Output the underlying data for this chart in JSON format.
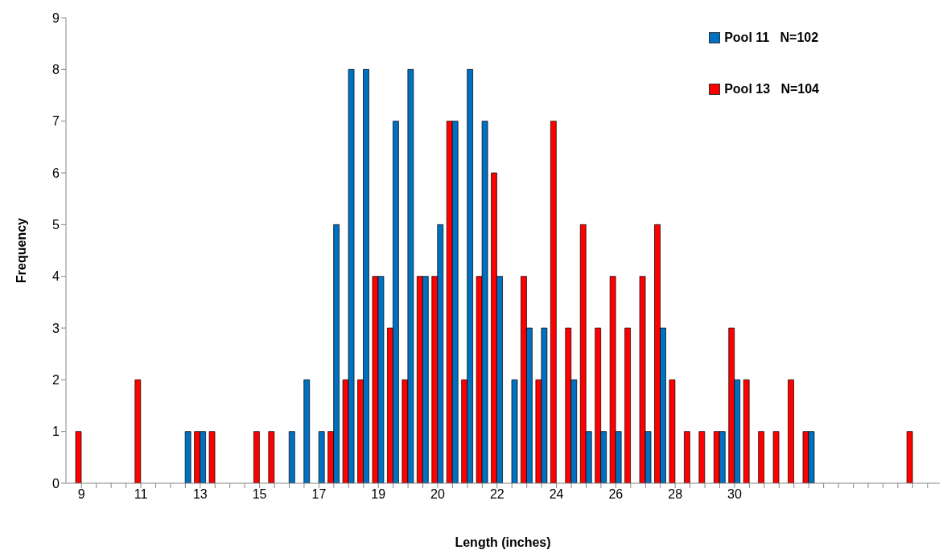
{
  "chart_data": {
    "type": "bar",
    "xlabel": "Length (inches)",
    "ylabel": "Frequency",
    "categories": [
      "9",
      null,
      null,
      null,
      "11",
      null,
      null,
      null,
      "13",
      null,
      null,
      null,
      "15",
      null,
      null,
      null,
      "17",
      null,
      null,
      null,
      "19",
      null,
      null,
      null,
      "20",
      null,
      null,
      null,
      "22",
      null,
      null,
      null,
      "24",
      null,
      null,
      null,
      "26",
      null,
      null,
      null,
      "28",
      null,
      null,
      null,
      "30",
      null,
      null,
      null,
      null,
      null,
      null,
      null,
      null,
      null,
      null,
      null,
      null,
      null
    ],
    "series": [
      {
        "name": "Pool 11   N=102",
        "color": "#0070c0",
        "values": [
          0,
          0,
          0,
          0,
          0,
          0,
          0,
          1,
          1,
          0,
          0,
          0,
          0,
          0,
          1,
          2,
          1,
          5,
          8,
          8,
          4,
          7,
          8,
          4,
          5,
          7,
          8,
          7,
          4,
          2,
          3,
          3,
          0,
          2,
          1,
          1,
          1,
          0,
          1,
          3,
          0,
          0,
          0,
          1,
          2,
          0,
          0,
          0,
          0,
          1,
          0,
          0,
          0,
          0,
          0,
          0,
          0,
          0
        ]
      },
      {
        "name": "Pool 13   N=104",
        "color": "#ff0000",
        "values": [
          1,
          0,
          0,
          0,
          2,
          0,
          0,
          0,
          1,
          1,
          0,
          0,
          1,
          1,
          0,
          0,
          0,
          1,
          2,
          2,
          4,
          3,
          2,
          4,
          4,
          7,
          2,
          4,
          6,
          0,
          4,
          2,
          7,
          3,
          5,
          3,
          4,
          3,
          4,
          5,
          2,
          1,
          1,
          1,
          3,
          2,
          1,
          1,
          2,
          1,
          0,
          0,
          0,
          0,
          0,
          0,
          1,
          0
        ]
      }
    ],
    "ylim": [
      0,
      9
    ],
    "yticks": [
      0,
      1,
      2,
      3,
      4,
      5,
      6,
      7,
      8,
      9
    ],
    "grid": false,
    "legend": "top right"
  }
}
